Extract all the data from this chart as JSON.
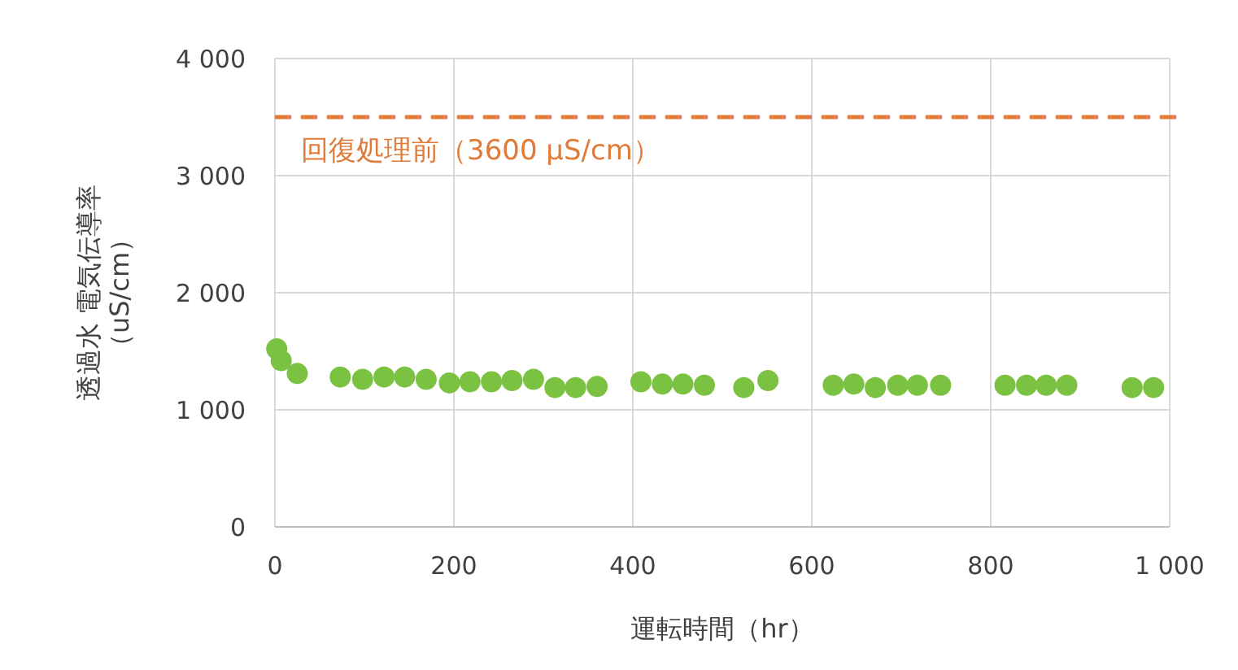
{
  "chart_data": {
    "type": "scatter",
    "xlabel": "運転時間（hr）",
    "ylabel": "透過水 電気伝導率（uS/cm）",
    "x": [
      2,
      7,
      25,
      73,
      98,
      122,
      145,
      169,
      195,
      218,
      242,
      265,
      289,
      313,
      336,
      360,
      409,
      433,
      456,
      480,
      524,
      551,
      624,
      647,
      671,
      696,
      718,
      744,
      816,
      840,
      862,
      885,
      958,
      982
    ],
    "series": [
      {
        "color": "#7cc242",
        "values": [
          1520,
          1420,
          1310,
          1280,
          1260,
          1280,
          1280,
          1260,
          1230,
          1240,
          1240,
          1250,
          1260,
          1190,
          1190,
          1200,
          1240,
          1220,
          1220,
          1210,
          1190,
          1250,
          1210,
          1220,
          1190,
          1210,
          1210,
          1210,
          1210,
          1210,
          1210,
          1210,
          1190,
          1190
        ]
      }
    ],
    "xlim": [
      0,
      1000
    ],
    "xticks": [
      0,
      200,
      400,
      600,
      800,
      {
        "value": 1000,
        "label": "1 000"
      }
    ],
    "ylim": [
      0,
      4000
    ],
    "yticks": [
      0,
      {
        "value": 1000,
        "label": "1 000"
      },
      {
        "value": 2000,
        "label": "2 000"
      },
      {
        "value": 3000,
        "label": "3 000"
      },
      {
        "value": 4000,
        "label": "4 000"
      }
    ],
    "grid": true,
    "marker": "circle",
    "ref_lines": [
      {
        "axis": "y",
        "value": 3500,
        "label": "回復処理前（3600 μS/cm）",
        "color": "#e07b39",
        "line_style": "dashed"
      }
    ]
  }
}
